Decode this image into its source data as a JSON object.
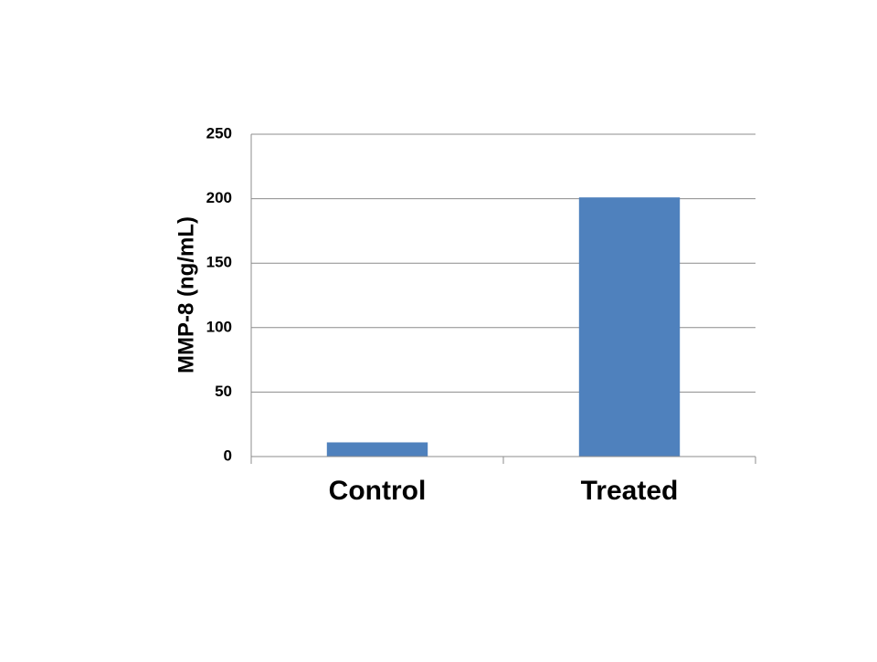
{
  "chart_data": {
    "type": "bar",
    "categories": [
      "Control",
      "Treated"
    ],
    "series": [
      {
        "values": [
          11,
          201
        ],
        "color": "#4f81bd"
      }
    ],
    "title": "",
    "xlabel": "",
    "ylabel": "MMP-8 (ng/mL)",
    "ylim": [
      0,
      250
    ],
    "yticks": [
      0,
      50,
      100,
      150,
      200,
      250
    ],
    "grid": true,
    "legend": "none"
  }
}
